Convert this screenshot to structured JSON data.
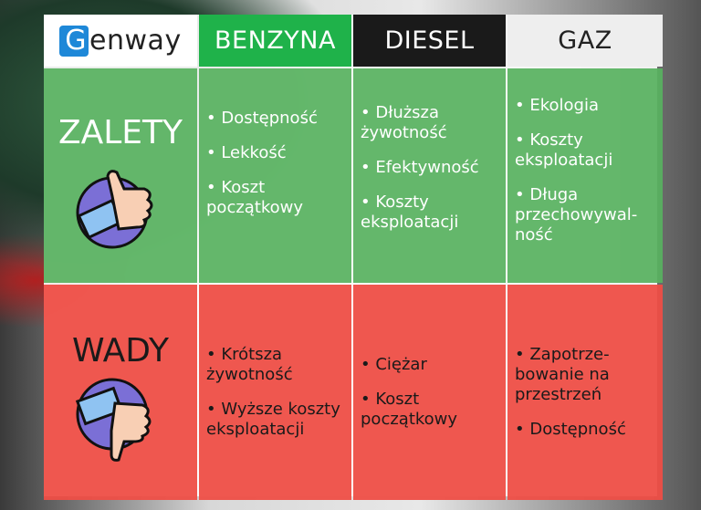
{
  "logo": {
    "letter": "G",
    "rest": "enway",
    "text": "Genway"
  },
  "headers": [
    "BENZYNA",
    "DIESEL",
    "GAZ"
  ],
  "rows": [
    {
      "label": "ZALETY",
      "icon": "thumbs-up-icon",
      "cells": [
        [
          "Dostępność",
          "Lekkość",
          "Koszt początkowy"
        ],
        [
          "Dłuższa żywotność",
          "Efektywność",
          "Koszty eksploatacji"
        ],
        [
          "Ekologia",
          "Koszty eksploatacji",
          "Długa przechowywal- ność"
        ]
      ]
    },
    {
      "label": "WADY",
      "icon": "thumbs-down-icon",
      "cells": [
        [
          "Krótsza żywotność",
          "Wyższe koszty eksploatacji"
        ],
        [
          "Ciężar",
          "Koszt początkowy"
        ],
        [
          "Zapotrze- bowanie na przestrzeń",
          "Dostępność"
        ]
      ]
    }
  ],
  "colors": {
    "benzyna": "#1fb24a",
    "diesel": "#1a1a1a",
    "gaz": "#eeeeee",
    "pros": "#58b260",
    "cons": "#ee4e46",
    "logo": "#1e88d8"
  }
}
